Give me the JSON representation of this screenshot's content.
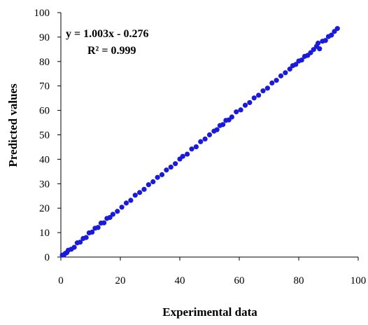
{
  "chart_data": {
    "type": "scatter",
    "xlabel": "Experimental data",
    "ylabel": "Predicted values",
    "xlim": [
      0,
      100
    ],
    "ylim": [
      0,
      100
    ],
    "x_ticks": [
      "0",
      "20",
      "40",
      "60",
      "80",
      "100"
    ],
    "y_ticks": [
      "0",
      "10",
      "20",
      "30",
      "40",
      "50",
      "60",
      "70",
      "80",
      "90",
      "100"
    ],
    "grid": false,
    "legend": "none",
    "annotations": {
      "equation": "y = 1.003x - 0.276",
      "r_squared": "R² = 0.999"
    },
    "series": [
      {
        "color": "#1a1adb",
        "x": [
          0.5,
          1.0,
          1.5,
          2.0,
          2.5,
          3.5,
          4.5,
          5.5,
          6.5,
          7.5,
          8.5,
          9.5,
          10.5,
          11.5,
          12.5,
          13.5,
          14.5,
          15.5,
          16.5,
          17.5,
          19.0,
          20.5,
          22.0,
          23.5,
          25.0,
          26.5,
          28.0,
          29.5,
          31.0,
          32.5,
          34.0,
          35.5,
          37.0,
          38.5,
          40.0,
          41.0,
          42.5,
          44.0,
          45.5,
          47.0,
          48.5,
          50.0,
          51.5,
          52.5,
          53.5,
          54.5,
          55.5,
          56.5,
          57.5,
          59.0,
          60.5,
          62.0,
          63.5,
          65.0,
          66.5,
          68.0,
          69.5,
          71.0,
          72.5,
          74.0,
          75.5,
          77.0,
          78.0,
          79.0,
          80.0,
          81.0,
          82.0,
          83.0,
          84.0,
          85.0,
          86.0,
          86.5,
          87.0,
          88.0,
          89.0,
          90.0,
          91.0,
          92.0,
          93.0
        ],
        "y": [
          0.8,
          0.9,
          1.5,
          1.8,
          2.8,
          3.2,
          4.0,
          5.8,
          6.1,
          7.6,
          8.0,
          9.9,
          10.2,
          11.8,
          12.1,
          13.9,
          14.0,
          15.8,
          16.2,
          17.5,
          18.7,
          20.4,
          22.1,
          23.2,
          25.3,
          26.4,
          27.7,
          29.6,
          30.8,
          32.6,
          33.7,
          35.6,
          36.8,
          38.2,
          40.1,
          41.2,
          42.1,
          44.2,
          45.1,
          47.2,
          48.3,
          50.0,
          51.5,
          52.1,
          53.8,
          54.2,
          55.9,
          56.1,
          57.3,
          59.4,
          60.2,
          62.1,
          63.2,
          65.1,
          66.2,
          68.0,
          69.1,
          71.2,
          72.3,
          74.1,
          75.4,
          76.9,
          78.3,
          78.8,
          80.2,
          80.6,
          82.1,
          82.5,
          83.6,
          84.9,
          86.2,
          87.5,
          85.2,
          88.3,
          88.6,
          90.2,
          90.8,
          92.3,
          93.5
        ]
      }
    ]
  }
}
